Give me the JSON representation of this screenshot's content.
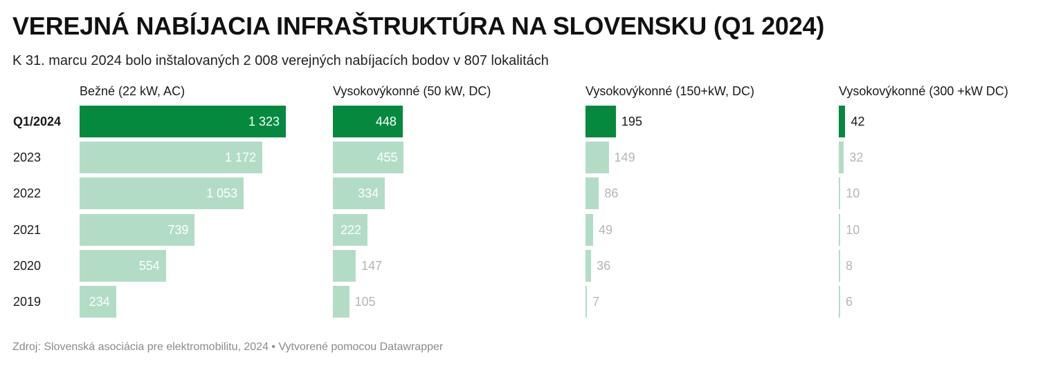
{
  "title": "VEREJNÁ NABÍJACIA INFRAŠTRUKTÚRA NA SLOVENSKU (Q1 2024)",
  "subtitle": "K 31. marcu 2024 bolo inštalovaných 2 008 verejných nabíjacích bodov v 807 lokalitách",
  "footer": "Zdroj: Slovenská asociácia pre elektromobilitu, 2024 • Vytvorené pomocou Datawrapper",
  "colors": {
    "highlight": "#05893f",
    "faded": "#b3dcc7",
    "label_faded": "#b5b5b5"
  },
  "chart_data": {
    "type": "bar",
    "orientation": "horizontal",
    "categories": [
      "Q1/2024",
      "2023",
      "2022",
      "2021",
      "2020",
      "2019"
    ],
    "highlighted_category": "Q1/2024",
    "series": [
      {
        "name": "Bežné (22 kW, AC)",
        "values": [
          1323,
          1172,
          1053,
          739,
          554,
          234
        ],
        "labels": [
          "1 323",
          "1 172",
          "1 053",
          "739",
          "554",
          "234"
        ]
      },
      {
        "name": "Vysokovýkonné (50 kW, DC)",
        "values": [
          448,
          455,
          334,
          222,
          147,
          105
        ],
        "labels": [
          "448",
          "455",
          "334",
          "222",
          "147",
          "105"
        ]
      },
      {
        "name": "Vysokovýkonné (150+kW, DC)",
        "values": [
          195,
          149,
          86,
          49,
          36,
          7
        ],
        "labels": [
          "195",
          "149",
          "86",
          "49",
          "36",
          "7"
        ]
      },
      {
        "name": "Vysokovýkonné (300 +kW DC)",
        "values": [
          42,
          32,
          10,
          10,
          8,
          6
        ],
        "labels": [
          "42",
          "32",
          "10",
          "10",
          "8",
          "6"
        ]
      }
    ]
  }
}
